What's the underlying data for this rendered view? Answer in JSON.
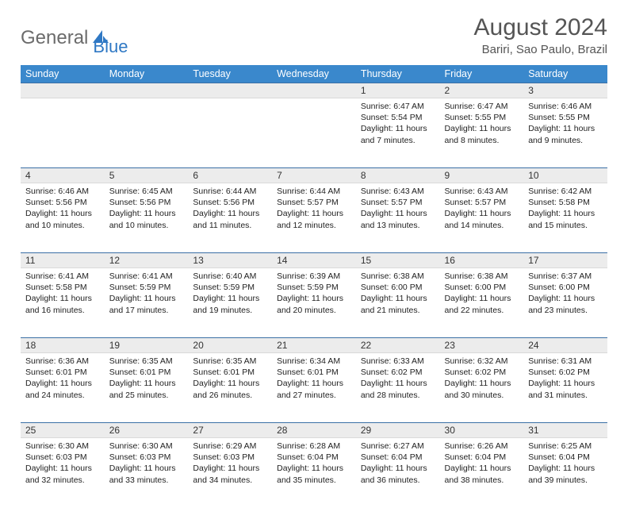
{
  "logo": {
    "text1": "General",
    "text2": "Blue"
  },
  "title": "August 2024",
  "location": "Bariri, Sao Paulo, Brazil",
  "day_headers": [
    "Sunday",
    "Monday",
    "Tuesday",
    "Wednesday",
    "Thursday",
    "Friday",
    "Saturday"
  ],
  "colors": {
    "header_bg": "#3a88cc",
    "header_text": "#ffffff",
    "daynum_bg": "#ececec",
    "border_top": "#3a6fa5",
    "logo_gray": "#6b6b6b",
    "logo_blue": "#2f78c4",
    "text": "#333333"
  },
  "weeks": [
    {
      "nums": [
        "",
        "",
        "",
        "",
        "1",
        "2",
        "3"
      ],
      "cells": [
        "",
        "",
        "",
        "",
        "Sunrise: 6:47 AM\nSunset: 5:54 PM\nDaylight: 11 hours and 7 minutes.",
        "Sunrise: 6:47 AM\nSunset: 5:55 PM\nDaylight: 11 hours and 8 minutes.",
        "Sunrise: 6:46 AM\nSunset: 5:55 PM\nDaylight: 11 hours and 9 minutes."
      ]
    },
    {
      "nums": [
        "4",
        "5",
        "6",
        "7",
        "8",
        "9",
        "10"
      ],
      "cells": [
        "Sunrise: 6:46 AM\nSunset: 5:56 PM\nDaylight: 11 hours and 10 minutes.",
        "Sunrise: 6:45 AM\nSunset: 5:56 PM\nDaylight: 11 hours and 10 minutes.",
        "Sunrise: 6:44 AM\nSunset: 5:56 PM\nDaylight: 11 hours and 11 minutes.",
        "Sunrise: 6:44 AM\nSunset: 5:57 PM\nDaylight: 11 hours and 12 minutes.",
        "Sunrise: 6:43 AM\nSunset: 5:57 PM\nDaylight: 11 hours and 13 minutes.",
        "Sunrise: 6:43 AM\nSunset: 5:57 PM\nDaylight: 11 hours and 14 minutes.",
        "Sunrise: 6:42 AM\nSunset: 5:58 PM\nDaylight: 11 hours and 15 minutes."
      ]
    },
    {
      "nums": [
        "11",
        "12",
        "13",
        "14",
        "15",
        "16",
        "17"
      ],
      "cells": [
        "Sunrise: 6:41 AM\nSunset: 5:58 PM\nDaylight: 11 hours and 16 minutes.",
        "Sunrise: 6:41 AM\nSunset: 5:59 PM\nDaylight: 11 hours and 17 minutes.",
        "Sunrise: 6:40 AM\nSunset: 5:59 PM\nDaylight: 11 hours and 19 minutes.",
        "Sunrise: 6:39 AM\nSunset: 5:59 PM\nDaylight: 11 hours and 20 minutes.",
        "Sunrise: 6:38 AM\nSunset: 6:00 PM\nDaylight: 11 hours and 21 minutes.",
        "Sunrise: 6:38 AM\nSunset: 6:00 PM\nDaylight: 11 hours and 22 minutes.",
        "Sunrise: 6:37 AM\nSunset: 6:00 PM\nDaylight: 11 hours and 23 minutes."
      ]
    },
    {
      "nums": [
        "18",
        "19",
        "20",
        "21",
        "22",
        "23",
        "24"
      ],
      "cells": [
        "Sunrise: 6:36 AM\nSunset: 6:01 PM\nDaylight: 11 hours and 24 minutes.",
        "Sunrise: 6:35 AM\nSunset: 6:01 PM\nDaylight: 11 hours and 25 minutes.",
        "Sunrise: 6:35 AM\nSunset: 6:01 PM\nDaylight: 11 hours and 26 minutes.",
        "Sunrise: 6:34 AM\nSunset: 6:01 PM\nDaylight: 11 hours and 27 minutes.",
        "Sunrise: 6:33 AM\nSunset: 6:02 PM\nDaylight: 11 hours and 28 minutes.",
        "Sunrise: 6:32 AM\nSunset: 6:02 PM\nDaylight: 11 hours and 30 minutes.",
        "Sunrise: 6:31 AM\nSunset: 6:02 PM\nDaylight: 11 hours and 31 minutes."
      ]
    },
    {
      "nums": [
        "25",
        "26",
        "27",
        "28",
        "29",
        "30",
        "31"
      ],
      "cells": [
        "Sunrise: 6:30 AM\nSunset: 6:03 PM\nDaylight: 11 hours and 32 minutes.",
        "Sunrise: 6:30 AM\nSunset: 6:03 PM\nDaylight: 11 hours and 33 minutes.",
        "Sunrise: 6:29 AM\nSunset: 6:03 PM\nDaylight: 11 hours and 34 minutes.",
        "Sunrise: 6:28 AM\nSunset: 6:04 PM\nDaylight: 11 hours and 35 minutes.",
        "Sunrise: 6:27 AM\nSunset: 6:04 PM\nDaylight: 11 hours and 36 minutes.",
        "Sunrise: 6:26 AM\nSunset: 6:04 PM\nDaylight: 11 hours and 38 minutes.",
        "Sunrise: 6:25 AM\nSunset: 6:04 PM\nDaylight: 11 hours and 39 minutes."
      ]
    }
  ]
}
